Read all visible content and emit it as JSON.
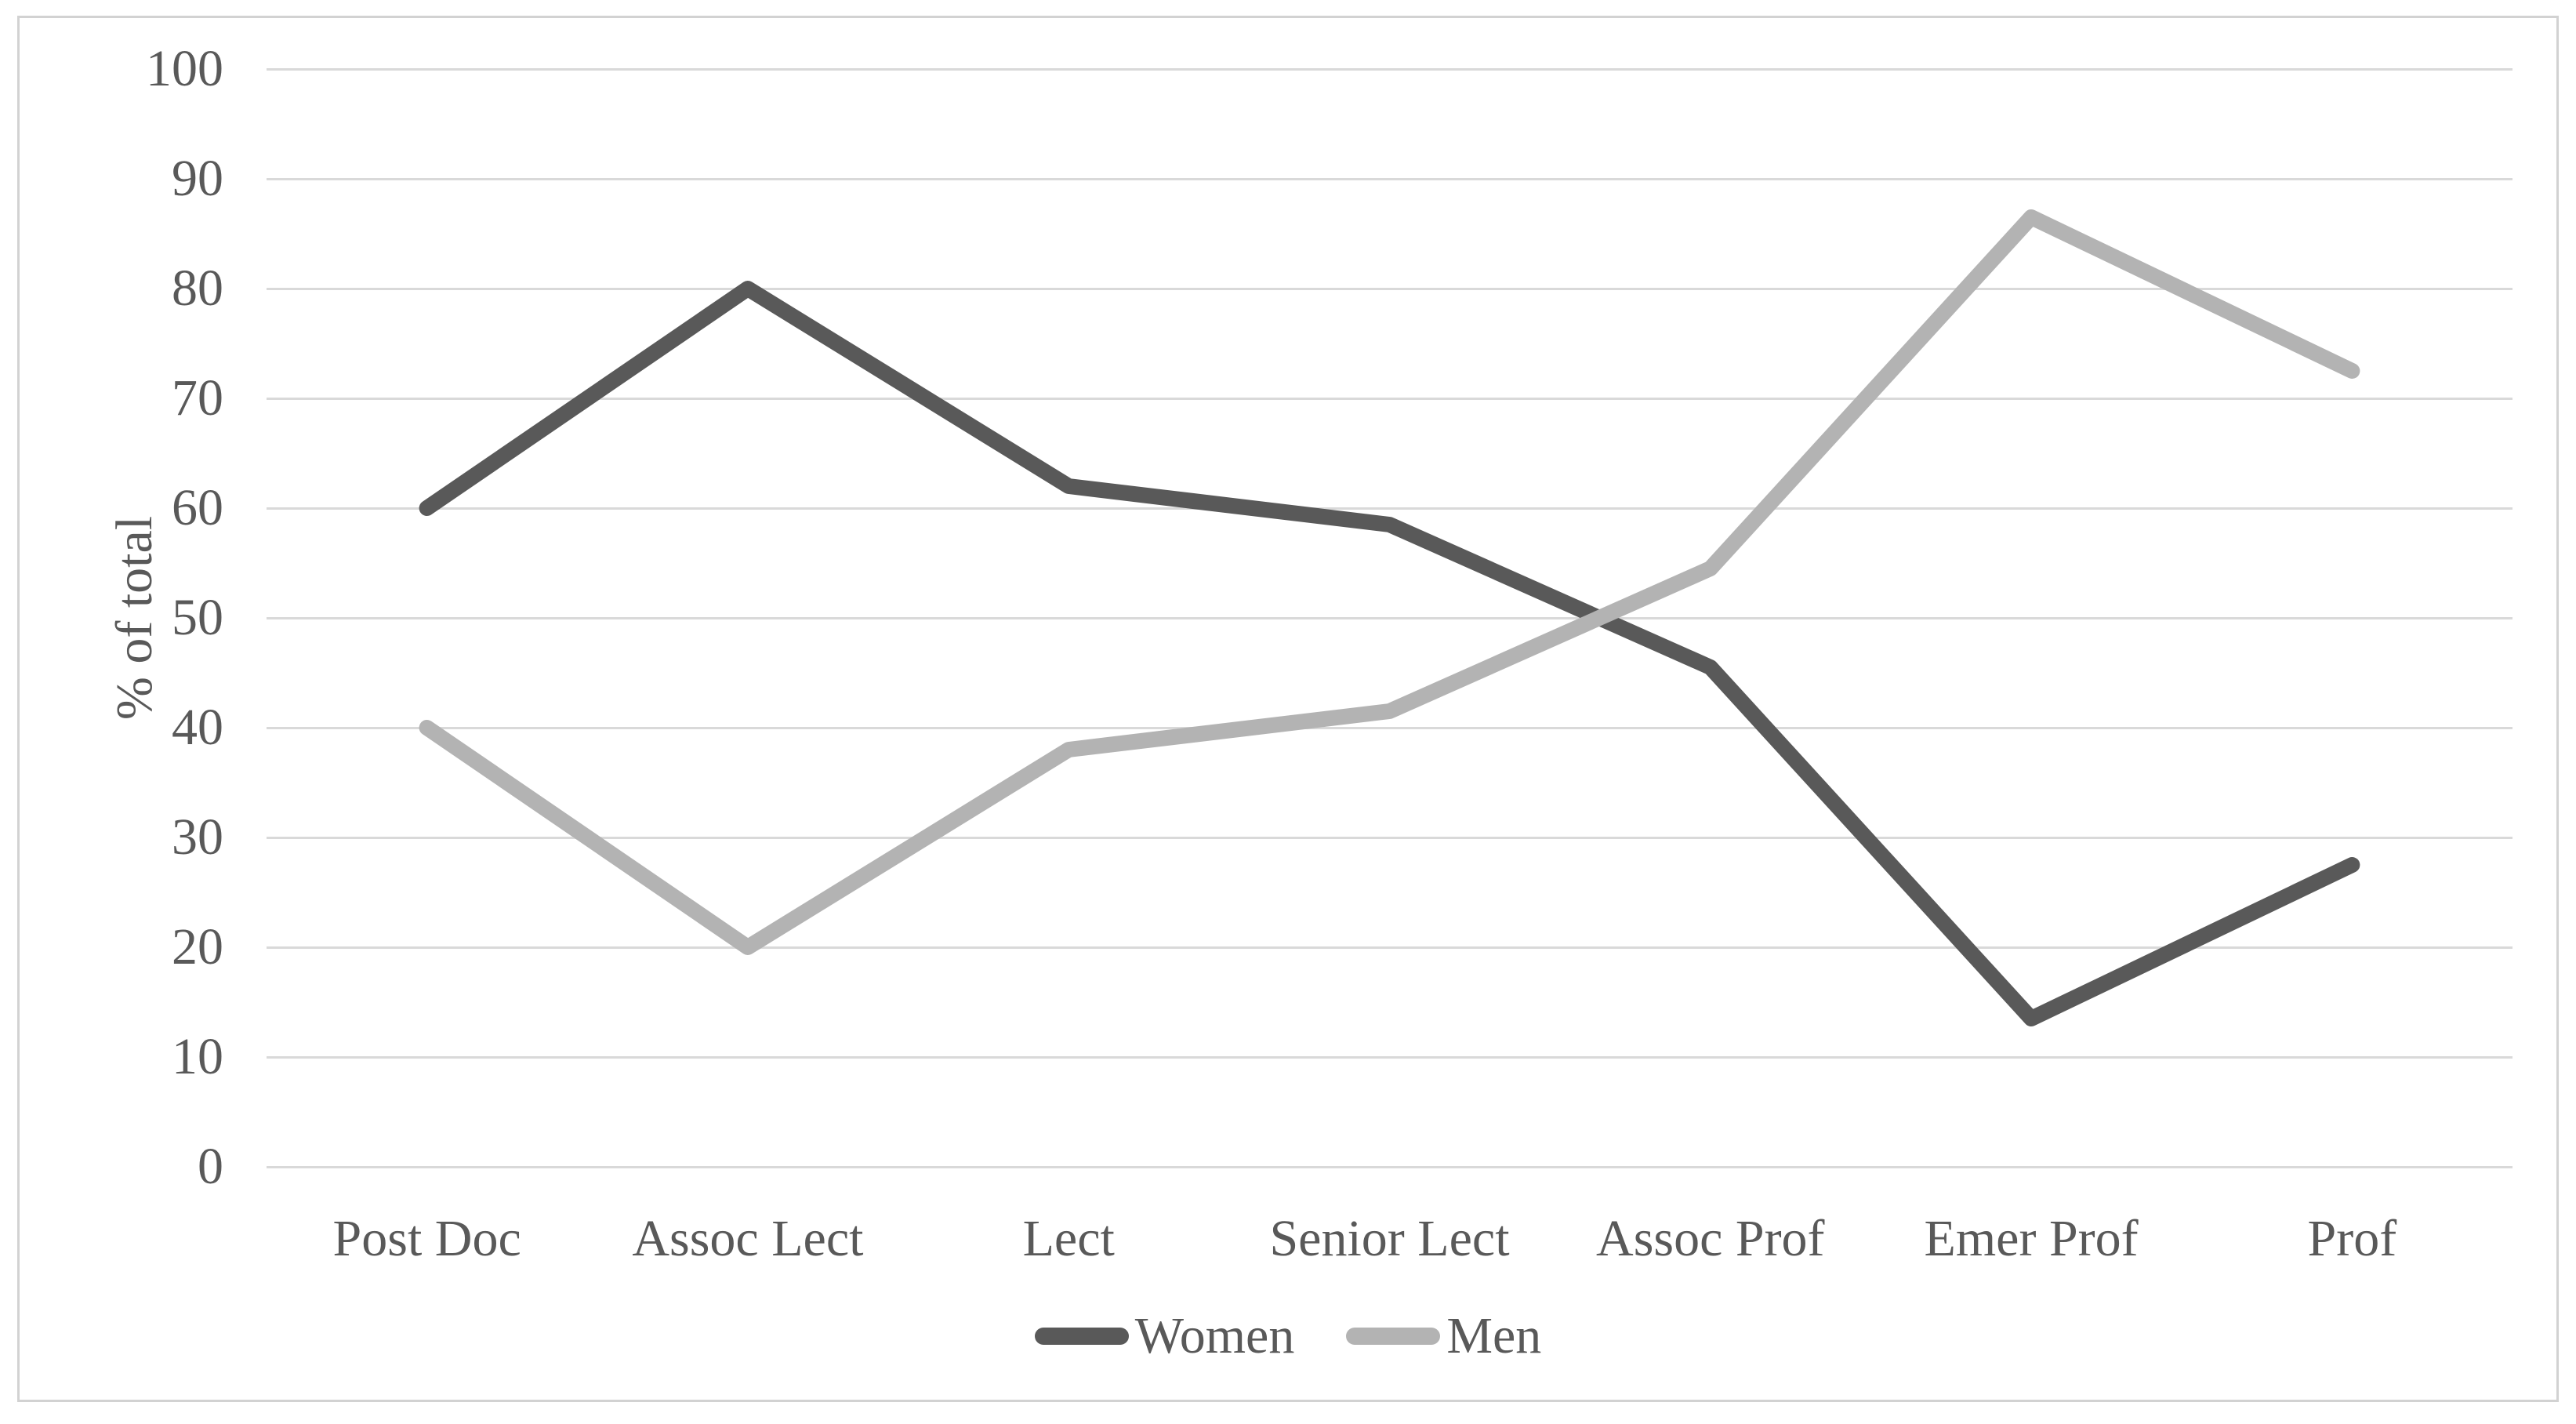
{
  "chart_data": {
    "type": "line",
    "title": "",
    "xlabel": "",
    "ylabel": "% of total",
    "categories": [
      "Post Doc",
      "Assoc Lect",
      "Lect",
      "Senior Lect",
      "Assoc Prof",
      "Emer Prof",
      "Prof"
    ],
    "series": [
      {
        "name": "Women",
        "color": "#595959",
        "values": [
          60,
          80,
          62,
          58.5,
          45.5,
          13.5,
          27.5
        ]
      },
      {
        "name": "Men",
        "color": "#b3b3b3",
        "values": [
          40,
          20,
          38,
          41.5,
          54.5,
          86.5,
          72.5
        ]
      }
    ],
    "ylim": [
      0,
      100
    ],
    "yticks": [
      0,
      10,
      20,
      30,
      40,
      50,
      60,
      70,
      80,
      90,
      100
    ],
    "grid": "horizontal",
    "legend_position": "bottom"
  },
  "legend": {
    "items": [
      {
        "label": "Women",
        "color": "#595959"
      },
      {
        "label": "Men",
        "color": "#b3b3b3"
      }
    ]
  },
  "styles": {
    "gridline_color": "#d9d9d9",
    "chart_border_color": "#d2d2d2",
    "text_color": "#595959",
    "background_color": "#ffffff",
    "women_line_color": "#595959",
    "men_line_color": "#b3b3b3"
  }
}
